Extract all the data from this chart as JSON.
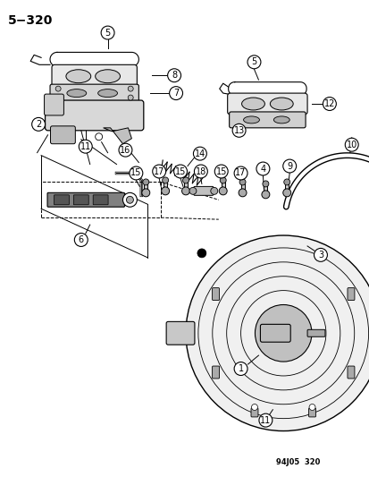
{
  "title": "5−320",
  "watermark": "94J05  320",
  "bg_color": "#ffffff",
  "figsize": [
    4.14,
    5.33
  ],
  "dpi": 100
}
